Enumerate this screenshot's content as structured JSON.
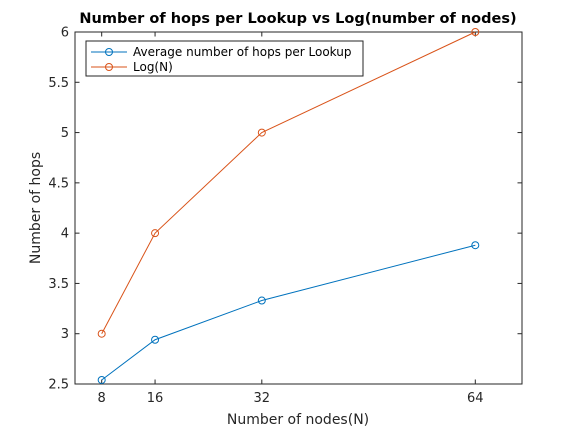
{
  "chart_data": {
    "type": "line",
    "title": "Number of hops per Lookup vs Log(number of nodes)",
    "xlabel": "Number of nodes(N)",
    "ylabel": "Number of hops",
    "xlim": [
      4,
      71
    ],
    "ylim": [
      2.5,
      6
    ],
    "xticks": [
      8,
      16,
      32,
      64
    ],
    "xtick_labels": [
      "8",
      "16",
      "32",
      "64"
    ],
    "yticks": [
      2.5,
      3,
      3.5,
      4,
      4.5,
      5,
      5.5,
      6
    ],
    "ytick_labels": [
      "2.5",
      "3",
      "3.5",
      "4",
      "4.5",
      "5",
      "5.5",
      "6"
    ],
    "x": [
      8,
      16,
      32,
      64
    ],
    "series": [
      {
        "name": "Average number of hops per Lookup",
        "values": [
          2.54,
          2.94,
          3.33,
          3.88
        ],
        "color": "#0072BD",
        "marker": "circle"
      },
      {
        "name": "Log(N)",
        "values": [
          3,
          4,
          5,
          6
        ],
        "color": "#D95319",
        "marker": "circle"
      }
    ],
    "legend": "top-left",
    "grid": false,
    "box": true
  }
}
